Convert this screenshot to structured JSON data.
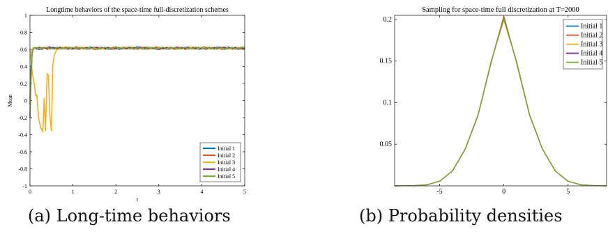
{
  "captions": {
    "a": "(a) Long-time behaviors",
    "b": "(b) Probability densities"
  },
  "chart_data": [
    {
      "type": "line",
      "title": "Longtime behaviors of the space-time full-discretization schemes",
      "xlabel": "t",
      "ylabel": "Mean",
      "xlim": [
        0,
        5
      ],
      "ylim": [
        -1,
        1
      ],
      "xticks": [
        0,
        1,
        2,
        3,
        4,
        5
      ],
      "yticks": [
        -1,
        -0.8,
        -0.6,
        -0.4,
        -0.2,
        0,
        0.2,
        0.4,
        0.6,
        0.8,
        1
      ],
      "legend_position": "bottom-right",
      "series": [
        {
          "name": "Initial 1",
          "color": "#0072BD",
          "x": [
            0,
            0.02,
            0.05,
            0.08,
            0.12,
            0.2,
            0.5,
            1,
            1.5,
            2,
            2.5,
            3,
            3.5,
            4,
            4.5,
            5
          ],
          "y": [
            0.02,
            0.35,
            0.58,
            0.61,
            0.62,
            0.61,
            0.62,
            0.61,
            0.62,
            0.61,
            0.62,
            0.61,
            0.62,
            0.61,
            0.62,
            0.61
          ]
        },
        {
          "name": "Initial 2",
          "color": "#D95319",
          "x": [
            0,
            0.02,
            0.05,
            0.08,
            0.12,
            0.2,
            0.5,
            1,
            1.5,
            2,
            2.5,
            3,
            3.5,
            4,
            4.5,
            5
          ],
          "y": [
            -0.05,
            0.3,
            0.57,
            0.62,
            0.61,
            0.62,
            0.61,
            0.62,
            0.61,
            0.62,
            0.61,
            0.62,
            0.61,
            0.62,
            0.61,
            0.62
          ]
        },
        {
          "name": "Initial 3",
          "color": "#EDB120",
          "x": [
            0,
            0.03,
            0.06,
            0.1,
            0.13,
            0.16,
            0.2,
            0.25,
            0.3,
            0.33,
            0.36,
            0.4,
            0.43,
            0.46,
            0.5,
            0.53,
            0.57,
            0.62,
            0.7,
            0.8,
            1,
            1.5,
            2,
            2.5,
            3,
            3.5,
            4,
            4.5,
            5
          ],
          "y": [
            0.6,
            0.45,
            0.3,
            0.2,
            0.06,
            0.06,
            -0.2,
            -0.33,
            -0.36,
            0.04,
            -0.35,
            0.31,
            0.3,
            -0.15,
            -0.37,
            0.4,
            0.55,
            0.6,
            0.61,
            0.62,
            0.61,
            0.62,
            0.61,
            0.62,
            0.61,
            0.62,
            0.61,
            0.62,
            0.61
          ]
        },
        {
          "name": "Initial 4",
          "color": "#7E2F8E",
          "x": [
            0,
            0.02,
            0.05,
            0.08,
            0.12,
            0.2,
            0.5,
            1,
            1.5,
            2,
            2.5,
            3,
            3.5,
            4,
            4.5,
            5
          ],
          "y": [
            -0.2,
            0.2,
            0.55,
            0.61,
            0.62,
            0.61,
            0.62,
            0.61,
            0.62,
            0.61,
            0.62,
            0.61,
            0.62,
            0.61,
            0.62,
            0.61
          ]
        },
        {
          "name": "Initial 5",
          "color": "#77AC30",
          "x": [
            0,
            0.02,
            0.05,
            0.08,
            0.12,
            0.2,
            0.5,
            1,
            1.5,
            2,
            2.5,
            3,
            3.5,
            4,
            4.5,
            5
          ],
          "y": [
            -0.15,
            0.25,
            0.56,
            0.62,
            0.61,
            0.62,
            0.61,
            0.62,
            0.61,
            0.62,
            0.61,
            0.62,
            0.61,
            0.62,
            0.61,
            0.62
          ]
        }
      ]
    },
    {
      "type": "line",
      "title": "Sampling for space-time full discretization at T=2000",
      "xlabel": "",
      "ylabel": "",
      "xlim": [
        -8.5,
        8
      ],
      "ylim": [
        0,
        0.205
      ],
      "xticks": [
        -5,
        0,
        5
      ],
      "yticks": [
        0.05,
        0.1,
        0.15,
        0.2
      ],
      "legend_position": "top-right",
      "series": [
        {
          "name": "Initial 1",
          "color": "#0072BD",
          "x": [
            -8.5,
            -7,
            -6,
            -5,
            -4,
            -3,
            -2,
            -1,
            0,
            1,
            2,
            3,
            4,
            5,
            6,
            7,
            8
          ],
          "y": [
            0,
            0.0003,
            0.0013,
            0.0055,
            0.018,
            0.0445,
            0.0855,
            0.1485,
            0.203,
            0.1485,
            0.0855,
            0.0445,
            0.018,
            0.0055,
            0.0013,
            0.0003,
            0
          ]
        },
        {
          "name": "Initial 2",
          "color": "#D95319",
          "x": [
            -8.5,
            -7,
            -6,
            -5,
            -4,
            -3,
            -2,
            -1,
            0,
            1,
            2,
            3,
            4,
            5,
            6,
            7,
            8
          ],
          "y": [
            0,
            0.0003,
            0.0013,
            0.0055,
            0.018,
            0.0445,
            0.0855,
            0.1475,
            0.204,
            0.1475,
            0.0855,
            0.0445,
            0.018,
            0.0055,
            0.0013,
            0.0003,
            0
          ]
        },
        {
          "name": "Initial 3",
          "color": "#EDB120",
          "x": [
            -8.5,
            -7,
            -6,
            -5,
            -4,
            -3,
            -2,
            -1,
            0,
            1,
            2,
            3,
            4,
            5,
            6,
            7,
            8
          ],
          "y": [
            0,
            0.0003,
            0.0013,
            0.0056,
            0.0182,
            0.0448,
            0.086,
            0.149,
            0.199,
            0.149,
            0.086,
            0.0448,
            0.0182,
            0.0056,
            0.0013,
            0.0003,
            0
          ]
        },
        {
          "name": "Initial 4",
          "color": "#7E2F8E",
          "x": [
            -8.5,
            -7,
            -6,
            -5,
            -4,
            -3,
            -2,
            -1,
            0,
            1,
            2,
            3,
            4,
            5,
            6,
            7,
            8
          ],
          "y": [
            0,
            0.0003,
            0.0013,
            0.0055,
            0.0179,
            0.0444,
            0.0852,
            0.148,
            0.202,
            0.148,
            0.0852,
            0.0444,
            0.0179,
            0.0055,
            0.0013,
            0.0003,
            0
          ]
        },
        {
          "name": "Initial 5",
          "color": "#77AC30",
          "x": [
            -8.5,
            -7,
            -6,
            -5,
            -4,
            -3,
            -2,
            -1,
            0,
            1,
            2,
            3,
            4,
            5,
            6,
            7,
            8
          ],
          "y": [
            0,
            0.0003,
            0.0013,
            0.0055,
            0.0181,
            0.0447,
            0.0858,
            0.1488,
            0.201,
            0.1488,
            0.0858,
            0.0447,
            0.0181,
            0.0055,
            0.0013,
            0.0003,
            0
          ]
        }
      ]
    }
  ]
}
